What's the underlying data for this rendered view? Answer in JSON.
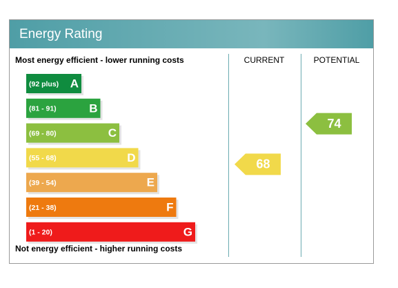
{
  "header": {
    "title": "Energy Rating"
  },
  "columns": {
    "top_note": "Most energy efficient - lower running costs",
    "current": "CURRENT",
    "potential": "POTENTIAL",
    "bottom_note": "Not energy efficient - higher running costs"
  },
  "bands": [
    {
      "range": "(92 plus)",
      "letter": "A",
      "color": "#0f8c3f"
    },
    {
      "range": "(81 - 91)",
      "letter": "B",
      "color": "#2ba33f"
    },
    {
      "range": "(69 - 80)",
      "letter": "C",
      "color": "#8cbf40"
    },
    {
      "range": "(55 - 68)",
      "letter": "D",
      "color": "#f1d94a"
    },
    {
      "range": "(39 - 54)",
      "letter": "E",
      "color": "#eda84e"
    },
    {
      "range": "(21 - 38)",
      "letter": "F",
      "color": "#ee7a0f"
    },
    {
      "range": "(1 - 20)",
      "letter": "G",
      "color": "#ef1b1b"
    }
  ],
  "current": {
    "value": 68
  },
  "potential": {
    "value": 74
  }
}
